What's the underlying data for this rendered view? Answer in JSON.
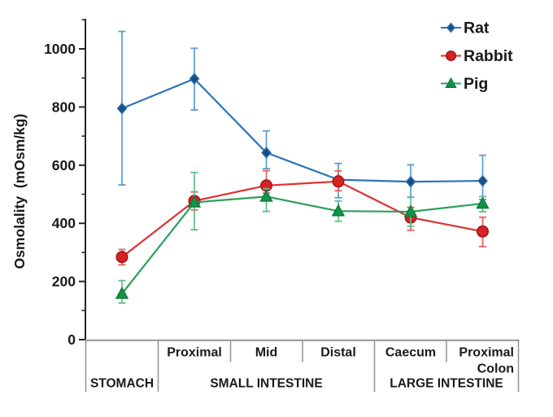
{
  "chart_data": {
    "type": "line",
    "ylabel": "Osmolality  (mOsm/kg)",
    "ylim": [
      0,
      1100
    ],
    "y_ticks": [
      0,
      200,
      400,
      600,
      800,
      1000
    ],
    "y_minor_ticks": [
      100,
      300,
      500,
      700,
      900,
      1100
    ],
    "categories": [
      "Stomach",
      "Proximal",
      "Mid",
      "Distal",
      "Caecum",
      "Proximal Colon"
    ],
    "col_labels": [
      "",
      "Proximal",
      "Mid",
      "Distal",
      "Caecum",
      "Proximal"
    ],
    "col_labels_line2": [
      "",
      "",
      "",
      "",
      "",
      "Colon"
    ],
    "region_groups": [
      {
        "label": "STOMACH",
        "span": [
          0,
          1
        ]
      },
      {
        "label": "SMALL INTESTINE",
        "span": [
          1,
          4
        ]
      },
      {
        "label": "LARGE INTESTINE",
        "span": [
          4,
          6
        ]
      }
    ],
    "grid": false,
    "error_bars": true,
    "legend_position": "top-right",
    "series": [
      {
        "name": "Rat",
        "marker": "diamond",
        "line_color": "#2E74B5",
        "marker_fill": "#1B4E7F",
        "marker_edge": "#2E74B5",
        "error_color": "#5B9BD5",
        "values": [
          795,
          897,
          643,
          550,
          543,
          546
        ],
        "err_high": [
          1060,
          1002,
          718,
          606,
          601,
          634
        ],
        "err_low": [
          532,
          790,
          588,
          488,
          490,
          482
        ]
      },
      {
        "name": "Rabbit",
        "marker": "circle",
        "line_color": "#E03131",
        "marker_fill": "#D62222",
        "marker_edge": "#9C1414",
        "error_color": "#E26060",
        "values": [
          284,
          477,
          530,
          544,
          420,
          372
        ],
        "err_high": [
          310,
          508,
          581,
          580,
          455,
          421
        ],
        "err_low": [
          257,
          446,
          504,
          512,
          376,
          320
        ]
      },
      {
        "name": "Pig",
        "marker": "triangle",
        "line_color": "#2AA05A",
        "marker_fill": "#129549",
        "marker_edge": "#0B7A38",
        "error_color": "#5FBD8C",
        "values": [
          158,
          472,
          492,
          442,
          440,
          468
        ],
        "err_high": [
          203,
          575,
          519,
          477,
          489,
          492
        ],
        "err_low": [
          126,
          378,
          441,
          407,
          390,
          440
        ]
      }
    ]
  }
}
